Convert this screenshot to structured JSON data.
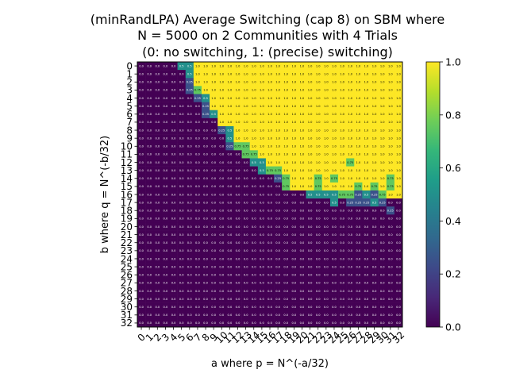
{
  "chart_data": {
    "type": "heatmap",
    "title": [
      "(minRandLPA) Average Switching (cap 8) on SBM where",
      "N = 5000 on 2 Communities with 4 Trials",
      "(0: no switching, 1: (precise) switching)"
    ],
    "xlabel": "a where p = N^(-a/32)",
    "ylabel": "b where q = N^(-b/32)",
    "x_ticks": [
      "0",
      "1",
      "2",
      "3",
      "4",
      "5",
      "6",
      "7",
      "8",
      "9",
      "10",
      "11",
      "12",
      "13",
      "14",
      "15",
      "16",
      "17",
      "18",
      "19",
      "20",
      "21",
      "22",
      "23",
      "24",
      "25",
      "26",
      "27",
      "28",
      "29",
      "30",
      "31",
      "32"
    ],
    "y_ticks": [
      "0",
      "1",
      "2",
      "3",
      "4",
      "5",
      "6",
      "7",
      "8",
      "9",
      "10",
      "11",
      "12",
      "13",
      "14",
      "15",
      "16",
      "17",
      "18",
      "19",
      "20",
      "21",
      "22",
      "23",
      "24",
      "25",
      "26",
      "27",
      "28",
      "29",
      "30",
      "31",
      "32"
    ],
    "colorbar": {
      "min": 0.0,
      "max": 1.0,
      "ticks": [
        "0.0",
        "0.2",
        "0.4",
        "0.6",
        "0.8",
        "1.0"
      ]
    },
    "colormap": [
      "#440154",
      "#482878",
      "#3e4989",
      "#31688e",
      "#26828e",
      "#1f9e89",
      "#35b779",
      "#6ece58",
      "#b5de2b",
      "#fde725"
    ],
    "rows": [
      {
        "b": 0,
        "ones_from": 7,
        "overrides": {
          "5": 0.5,
          "6": 0.5
        }
      },
      {
        "b": 1,
        "ones_from": 7,
        "overrides": {
          "6": 0.5
        }
      },
      {
        "b": 2,
        "ones_from": 7,
        "overrides": {
          "6": 0.25
        }
      },
      {
        "b": 3,
        "ones_from": 8,
        "overrides": {
          "6": 0.25,
          "7": 0.75
        }
      },
      {
        "b": 4,
        "ones_from": 9,
        "overrides": {
          "7": 0.25,
          "8": 0.5
        }
      },
      {
        "b": 5,
        "ones_from": 9,
        "overrides": {
          "8": 0.25
        }
      },
      {
        "b": 6,
        "ones_from": 10,
        "overrides": {
          "8": 0.25,
          "9": 0.5
        }
      },
      {
        "b": 7,
        "ones_from": 10,
        "overrides": {}
      },
      {
        "b": 8,
        "ones_from": 12,
        "overrides": {
          "10": 0.25,
          "11": 0.5
        }
      },
      {
        "b": 9,
        "ones_from": 12,
        "overrides": {
          "11": 0.5
        }
      },
      {
        "b": 10,
        "ones_from": 14,
        "overrides": {
          "11": 0.25,
          "12": 0.75,
          "13": 0.75
        }
      },
      {
        "b": 11,
        "ones_from": 15,
        "overrides": {
          "13": 0.75,
          "14": 0.75
        }
      },
      {
        "b": 12,
        "ones_from": 16,
        "overrides": {
          "14": 0.5,
          "15": 0.5,
          "26": 0.75
        }
      },
      {
        "b": 13,
        "ones_from": 18,
        "overrides": {
          "15": 0.5,
          "16": 0.75,
          "17": 0.75
        }
      },
      {
        "b": 14,
        "ones_from": 19,
        "overrides": {
          "17": 0.25,
          "18": 0.75,
          "22": 0.75,
          "24": 0.75,
          "31": 0.75
        }
      },
      {
        "b": 15,
        "ones_from": 19,
        "overrides": {
          "18": 0.75,
          "22": 0.75,
          "27": 0.75,
          "29": 0.75,
          "31": 0.75
        }
      },
      {
        "b": 16,
        "ones_from": 31,
        "overrides": {
          "20": 0.0,
          "21": 0.5,
          "22": 0.5,
          "23": 0.5,
          "24": 0.5,
          "25": 0.75,
          "26": 0.75,
          "27": 0.25,
          "28": 0.5,
          "29": 0.25,
          "30": 0.75
        }
      },
      {
        "b": 17,
        "ones_from": 33,
        "overrides": {
          "24": 0.5,
          "26": 0.25,
          "27": 0.25,
          "28": 0.25,
          "29": 0.5,
          "30": 0.25
        }
      },
      {
        "b": 18,
        "ones_from": 33,
        "overrides": {
          "31": 0.25
        }
      },
      {
        "b": 19,
        "ones_from": 33,
        "overrides": {}
      },
      {
        "b": 20,
        "ones_from": 33,
        "overrides": {}
      },
      {
        "b": 21,
        "ones_from": 33,
        "overrides": {}
      },
      {
        "b": 22,
        "ones_from": 33,
        "overrides": {}
      },
      {
        "b": 23,
        "ones_from": 33,
        "overrides": {}
      },
      {
        "b": 24,
        "ones_from": 33,
        "overrides": {}
      },
      {
        "b": 25,
        "ones_from": 33,
        "overrides": {}
      },
      {
        "b": 26,
        "ones_from": 33,
        "overrides": {}
      },
      {
        "b": 27,
        "ones_from": 33,
        "overrides": {}
      },
      {
        "b": 28,
        "ones_from": 33,
        "overrides": {}
      },
      {
        "b": 29,
        "ones_from": 33,
        "overrides": {}
      },
      {
        "b": 30,
        "ones_from": 33,
        "overrides": {}
      },
      {
        "b": 31,
        "ones_from": 33,
        "overrides": {}
      },
      {
        "b": 32,
        "ones_from": 33,
        "overrides": {}
      }
    ]
  }
}
